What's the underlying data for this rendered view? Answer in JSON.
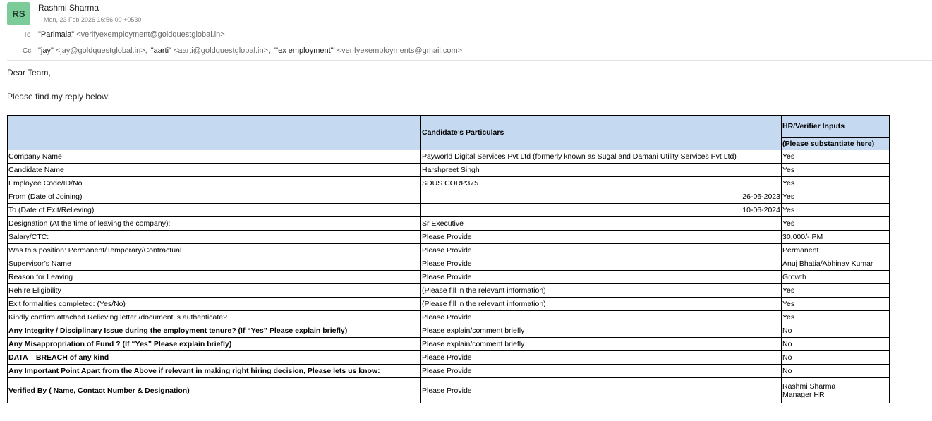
{
  "sender": {
    "initials": "RS",
    "name": "Rashmi Sharma",
    "date": "Mon, 23 Feb 2026 16:56:00 +0530"
  },
  "to": {
    "label": "To",
    "recipients": [
      {
        "name": "\"Parimala\"",
        "email": "<verifyexemployment@goldquestglobal.in>"
      }
    ]
  },
  "cc": {
    "label": "Cc",
    "recipients": [
      {
        "name": "\"jay\"",
        "email": "<jay@goldquestglobal.in>,"
      },
      {
        "name": "\"aarti\"",
        "email": "<aarti@goldquestglobal.in>,"
      },
      {
        "name": "\"'ex employment'\"",
        "email": "<verifyexemployments@gmail.com>"
      }
    ]
  },
  "body": {
    "greeting": "Dear Team,",
    "intro": "Please find my reply below:"
  },
  "table": {
    "header": {
      "particulars": "Candidate’s Particulars",
      "inputs": "HR/Verifier Inputs",
      "inputs_note": "(Please substantiate here)"
    },
    "rows": [
      [
        "Company Name",
        "Payworld Digital Services Pvt Ltd (formerly known as Sugal and Damani Utility Services Pvt Ltd)",
        "Yes"
      ],
      [
        "Candidate Name",
        "Harshpreet Singh",
        "Yes"
      ],
      [
        "Employee Code/ID/No",
        "SDUS CORP375",
        "Yes"
      ],
      [
        "From (Date of Joining)",
        "26-06-2023",
        "Yes"
      ],
      [
        "To (Date of Exit/Relieving)",
        "10-06-2024",
        "Yes"
      ],
      [
        "Designation (At the time of leaving the company):",
        "Sr Executive",
        "Yes"
      ],
      [
        "Salary/CTC:",
        "Please Provide",
        "30,000/- PM"
      ],
      [
        "Was this position: Permanent/Temporary/Contractual",
        "Please Provide",
        "Permanent"
      ],
      [
        "Supervisor’s Name",
        "Please Provide",
        "Anuj Bhatia/Abhinav Kumar"
      ],
      [
        "Reason for Leaving",
        "Please Provide",
        "Growth"
      ],
      [
        "Rehire Eligibility",
        "(Please fill in the relevant information)",
        "Yes"
      ],
      [
        "Exit formalities completed: (Yes/No)",
        "(Please fill in the relevant information)",
        "Yes"
      ],
      [
        "Kindly confirm attached Relieving letter /document is authenticate?",
        "Please Provide",
        "Yes"
      ],
      [
        "Any Integrity / Disciplinary Issue during the employment tenure? (If “Yes” Please explain briefly)",
        "Please explain/comment briefly",
        "No"
      ],
      [
        "Any Misappropriation of Fund ? (If “Yes” Please explain briefly)",
        "Please explain/comment briefly",
        "No"
      ],
      [
        "DATA – BREACH of any kind",
        "Please Provide",
        "No"
      ],
      [
        "Any Important Point Apart from the Above if relevant in making right hiring decision, Please lets us know:",
        "Please Provide",
        "No"
      ],
      [
        "Verified By ( Name, Contact Number & Designation)",
        "Please Provide",
        [
          "Rashmi Sharma",
          "Manager HR"
        ]
      ]
    ]
  }
}
